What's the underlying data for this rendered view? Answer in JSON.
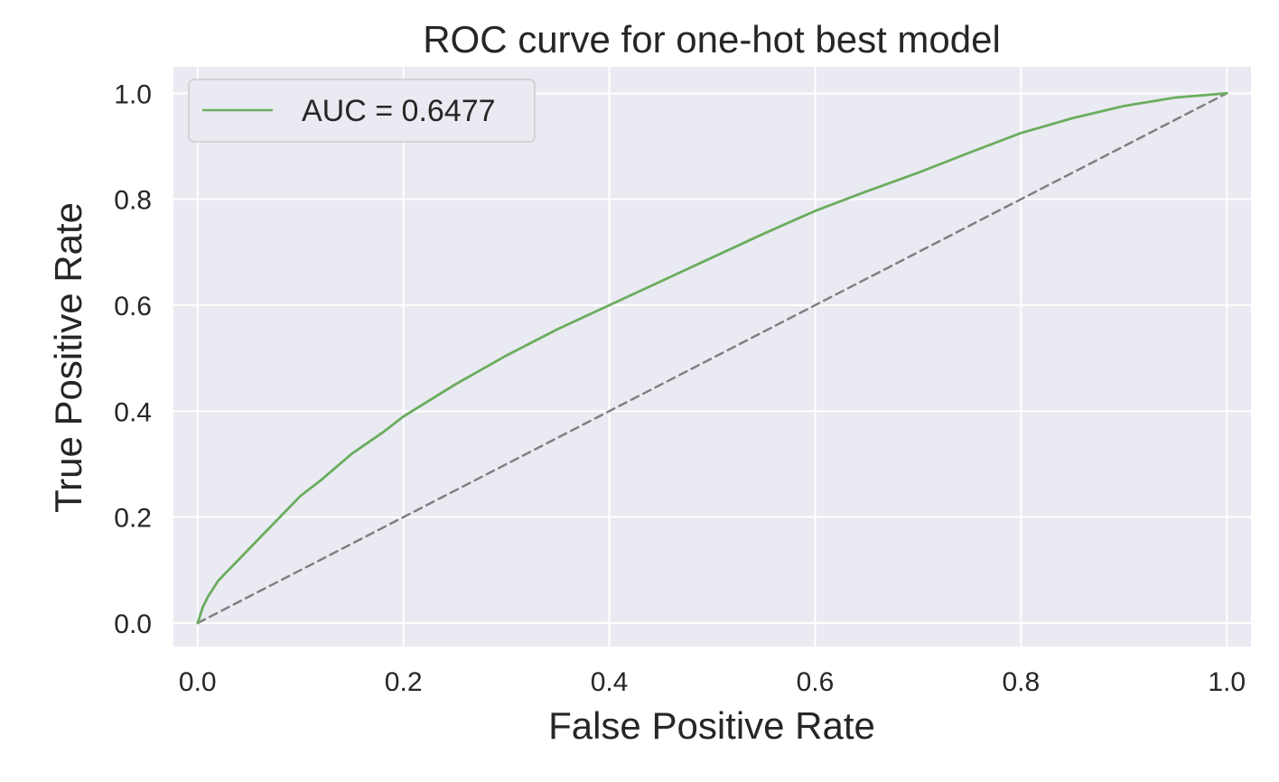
{
  "chart_data": {
    "type": "line",
    "title": "ROC curve for one-hot best model",
    "xlabel": "False Positive Rate",
    "ylabel": "True Positive Rate",
    "xlim": [
      -0.0235,
      1.0235
    ],
    "ylim": [
      -0.0443,
      1.05
    ],
    "xticks": [
      0.0,
      0.2,
      0.4,
      0.6,
      0.8,
      1.0
    ],
    "xtick_labels": [
      "0.0",
      "0.2",
      "0.4",
      "0.6",
      "0.8",
      "1.0"
    ],
    "yticks": [
      0.0,
      0.2,
      0.4,
      0.6,
      0.8,
      1.0
    ],
    "ytick_labels": [
      "0.0",
      "0.2",
      "0.4",
      "0.6",
      "0.8",
      "1.0"
    ],
    "grid": true,
    "legend_position": "upper-left",
    "background_color": "#eaeaf2",
    "grid_color": "#ffffff",
    "series": [
      {
        "name": "AUC = 0.6477",
        "color": "#6aad5e",
        "style": "solid",
        "x": [
          0.0,
          0.005,
          0.01,
          0.02,
          0.03,
          0.04,
          0.05,
          0.07,
          0.09,
          0.1,
          0.12,
          0.15,
          0.18,
          0.2,
          0.25,
          0.3,
          0.35,
          0.4,
          0.45,
          0.5,
          0.55,
          0.6,
          0.65,
          0.7,
          0.75,
          0.8,
          0.85,
          0.9,
          0.95,
          1.0
        ],
        "y": [
          0.0,
          0.03,
          0.05,
          0.08,
          0.1,
          0.12,
          0.14,
          0.18,
          0.22,
          0.24,
          0.27,
          0.32,
          0.36,
          0.39,
          0.45,
          0.505,
          0.555,
          0.6,
          0.645,
          0.69,
          0.735,
          0.778,
          0.815,
          0.85,
          0.888,
          0.925,
          0.953,
          0.976,
          0.992,
          1.0
        ]
      },
      {
        "name": "",
        "color": "#808080",
        "style": "dashed",
        "x": [
          0.0,
          1.0
        ],
        "y": [
          0.0,
          1.0
        ]
      }
    ]
  }
}
